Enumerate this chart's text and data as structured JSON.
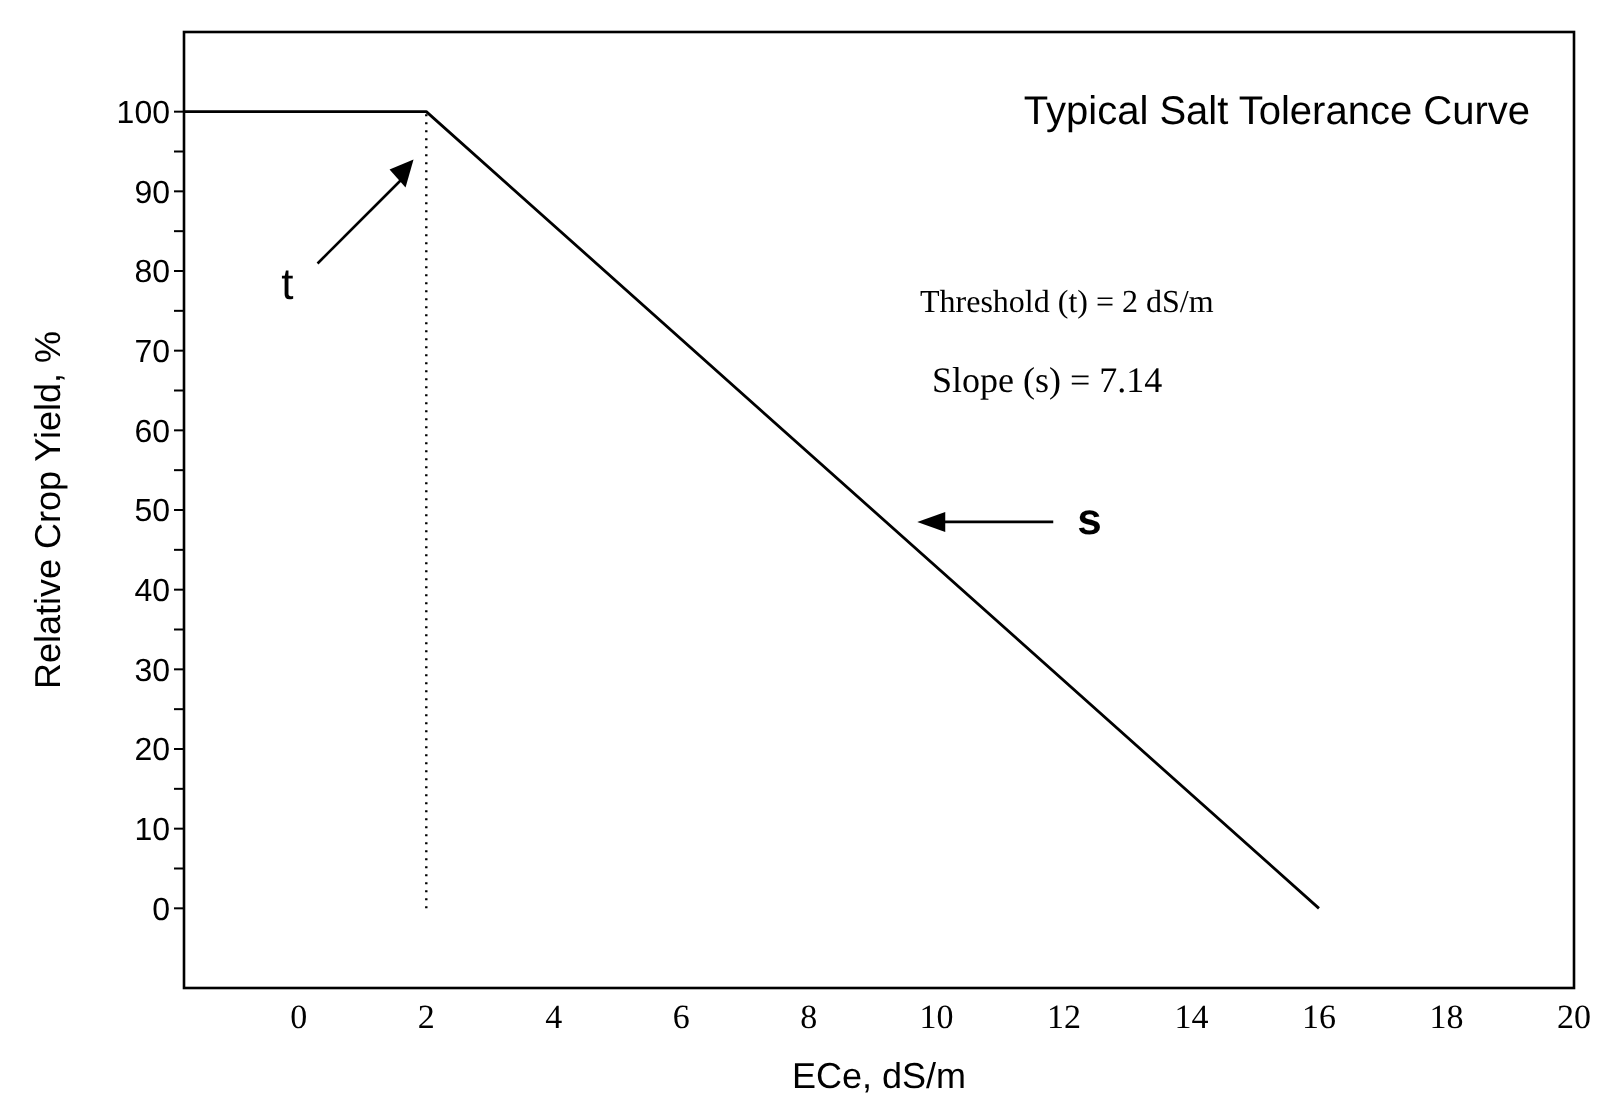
{
  "chart_data": {
    "type": "line",
    "title": "Typical Salt Tolerance Curve",
    "xlabel": "ECe, dS/m",
    "ylabel": "Relative Crop Yield, %",
    "series": [
      {
        "color": "#000000",
        "x": [
          -1.8,
          2,
          16
        ],
        "values": [
          100,
          100,
          0
        ],
        "line_style": "solid"
      }
    ],
    "ref_lines": [
      {
        "axis": "x",
        "value": 2,
        "color": "#000000",
        "line_style": "dotted"
      }
    ],
    "xlim": [
      -1.8,
      20
    ],
    "xticks": [
      0,
      2,
      4,
      6,
      8,
      10,
      12,
      14,
      16,
      18,
      20
    ],
    "ylim": [
      -10,
      110
    ],
    "yticks": [
      0,
      {
        "value": 5,
        "label": null
      },
      10,
      {
        "value": 15,
        "label": null
      },
      20,
      {
        "value": 25,
        "label": null
      },
      30,
      {
        "value": 35,
        "label": null
      },
      40,
      {
        "value": 45,
        "label": null
      },
      50,
      {
        "value": 55,
        "label": null
      },
      60,
      {
        "value": 65,
        "label": null
      },
      70,
      {
        "value": 75,
        "label": null
      },
      80,
      {
        "value": 85,
        "label": null
      },
      90,
      {
        "value": 95,
        "label": null
      },
      100
    ],
    "marker": "none",
    "grid": false,
    "legend": false,
    "annotations": [
      "Threshold (t) = 2 dS/m",
      "Slope (s) = 7.14",
      "t",
      "s"
    ]
  }
}
